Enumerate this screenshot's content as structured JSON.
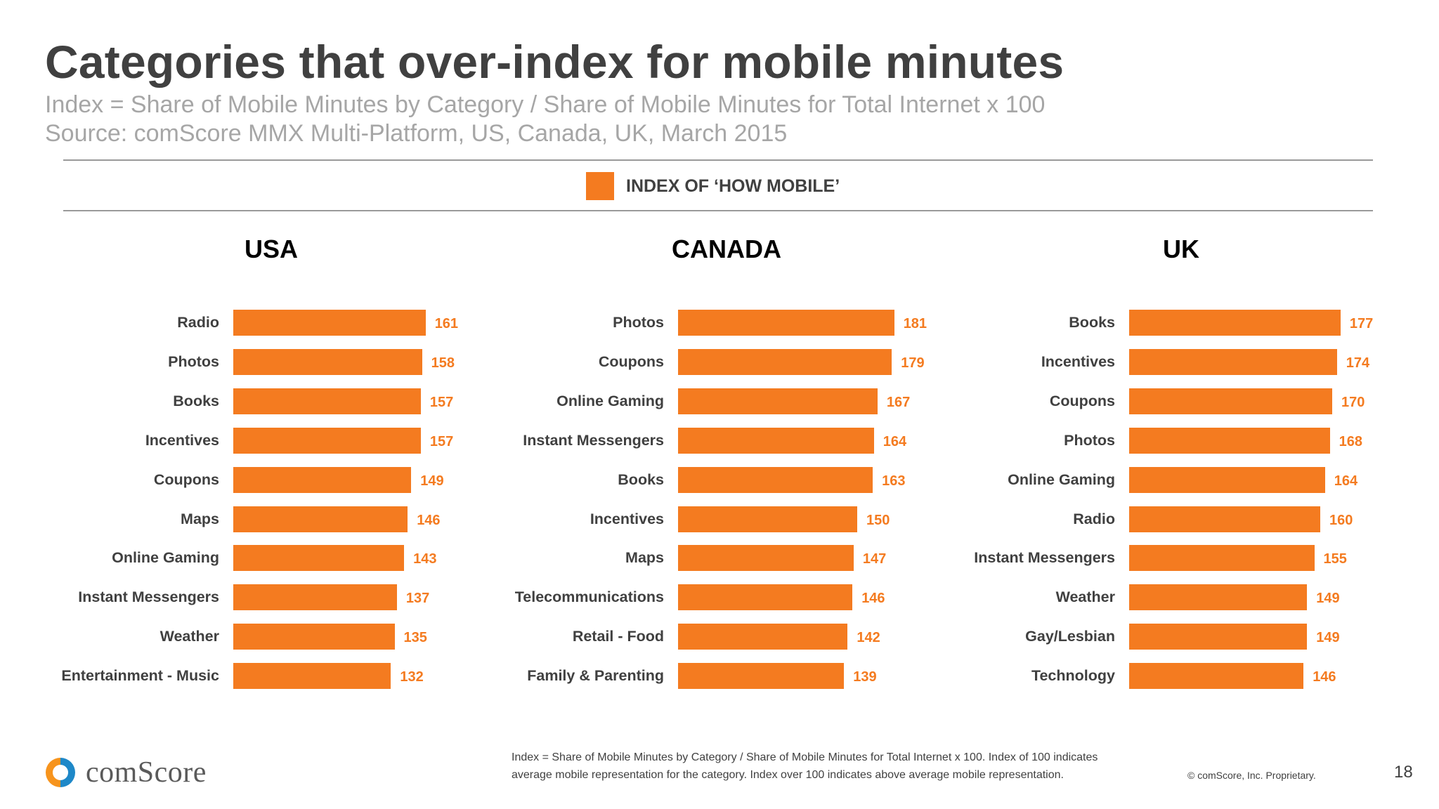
{
  "header": {
    "title": "Categories that over-index for mobile minutes",
    "subtitle_line1": "Index = Share of Mobile Minutes by Category / Share of Mobile Minutes for Total Internet x 100",
    "subtitle_line2": "Source: comScore MMX Multi-Platform, US, Canada, UK, March 2015"
  },
  "legend": {
    "label": "INDEX OF ‘HOW MOBILE’",
    "color": "#f47b20"
  },
  "colors": {
    "bar": "#f47b20",
    "value_label": "#f47b20",
    "logo_orange": "#f7941d",
    "logo_blue": "#1e88c8"
  },
  "chart_data": [
    {
      "type": "bar",
      "orientation": "horizontal",
      "title": "USA",
      "series_name": "INDEX OF ‘HOW MOBILE’",
      "categories": [
        "Radio",
        "Photos",
        "Books",
        "Incentives",
        "Coupons",
        "Maps",
        "Online Gaming",
        "Instant Messengers",
        "Weather",
        "Entertainment - Music"
      ],
      "values": [
        161,
        158,
        157,
        157,
        149,
        146,
        143,
        137,
        135,
        132
      ],
      "xlim": [
        0,
        190
      ]
    },
    {
      "type": "bar",
      "orientation": "horizontal",
      "title": "CANADA",
      "series_name": "INDEX OF ‘HOW MOBILE’",
      "categories": [
        "Photos",
        "Coupons",
        "Online Gaming",
        "Instant Messengers",
        "Books",
        "Incentives",
        "Maps",
        "Telecommunications",
        "Retail - Food",
        "Family & Parenting"
      ],
      "values": [
        181,
        179,
        167,
        164,
        163,
        150,
        147,
        146,
        142,
        139
      ],
      "xlim": [
        0,
        190
      ]
    },
    {
      "type": "bar",
      "orientation": "horizontal",
      "title": "UK",
      "series_name": "INDEX OF ‘HOW MOBILE’",
      "categories": [
        "Books",
        "Incentives",
        "Coupons",
        "Photos",
        "Online Gaming",
        "Radio",
        "Instant Messengers",
        "Weather",
        "Gay/Lesbian",
        "Technology"
      ],
      "values": [
        177,
        174,
        170,
        168,
        164,
        160,
        155,
        149,
        149,
        146
      ],
      "xlim": [
        0,
        190
      ]
    }
  ],
  "footer": {
    "note_line1": "Index = Share of Mobile Minutes by Category / Share of Mobile Minutes for Total Internet x 100. Index of 100 indicates",
    "note_line2": "average mobile representation for the category. Index over 100 indicates above average mobile representation.",
    "logo_text": "comScore",
    "copyright": "© comScore, Inc. Proprietary.",
    "page_number": "18"
  }
}
